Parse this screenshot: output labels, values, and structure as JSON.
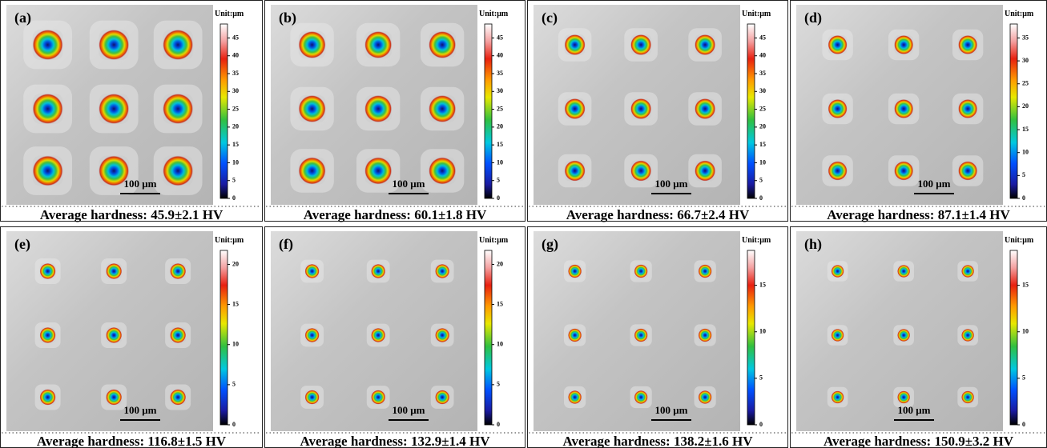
{
  "panels": [
    {
      "label": "(a)",
      "unit": "Unit:μm",
      "ticks": [
        0,
        5,
        10,
        15,
        20,
        25,
        30,
        35,
        40,
        45
      ],
      "scale_bar": "100 μm",
      "caption": "Average hardness: 45.9±2.1 HV"
    },
    {
      "label": "(b)",
      "unit": "Unit:μm",
      "ticks": [
        0,
        5,
        10,
        15,
        20,
        25,
        30,
        35,
        40,
        45
      ],
      "scale_bar": "100 μm",
      "caption": "Average hardness: 60.1±1.8 HV"
    },
    {
      "label": "(c)",
      "unit": "Unit:μm",
      "ticks": [
        0,
        5,
        10,
        15,
        20,
        25,
        30,
        35,
        40,
        45
      ],
      "scale_bar": "100 μm",
      "caption": "Average hardness: 66.7±2.4 HV"
    },
    {
      "label": "(d)",
      "unit": "Unit:μm",
      "ticks": [
        0,
        5,
        10,
        15,
        20,
        25,
        30,
        35
      ],
      "scale_bar": "100 μm",
      "caption": "Average hardness: 87.1±1.4 HV"
    },
    {
      "label": "(e)",
      "unit": "Unit:μm",
      "ticks": [
        0,
        5,
        10,
        15,
        20
      ],
      "scale_bar": "100 μm",
      "caption": "Average hardness: 116.8±1.5 HV"
    },
    {
      "label": "(f)",
      "unit": "Unit:μm",
      "ticks": [
        0,
        5,
        10,
        15,
        20
      ],
      "scale_bar": "100 μm",
      "caption": "Average hardness: 132.9±1.4 HV"
    },
    {
      "label": "(g)",
      "unit": "Unit:μm",
      "ticks": [
        0,
        5,
        10,
        15
      ],
      "scale_bar": "100 μm",
      "caption": "Average hardness: 138.2±1.6 HV"
    },
    {
      "label": "(h)",
      "unit": "Unit:μm",
      "ticks": [
        0,
        5,
        10,
        15
      ],
      "scale_bar": "100 μm",
      "caption": "Average hardness: 150.9±3.2 HV"
    }
  ]
}
